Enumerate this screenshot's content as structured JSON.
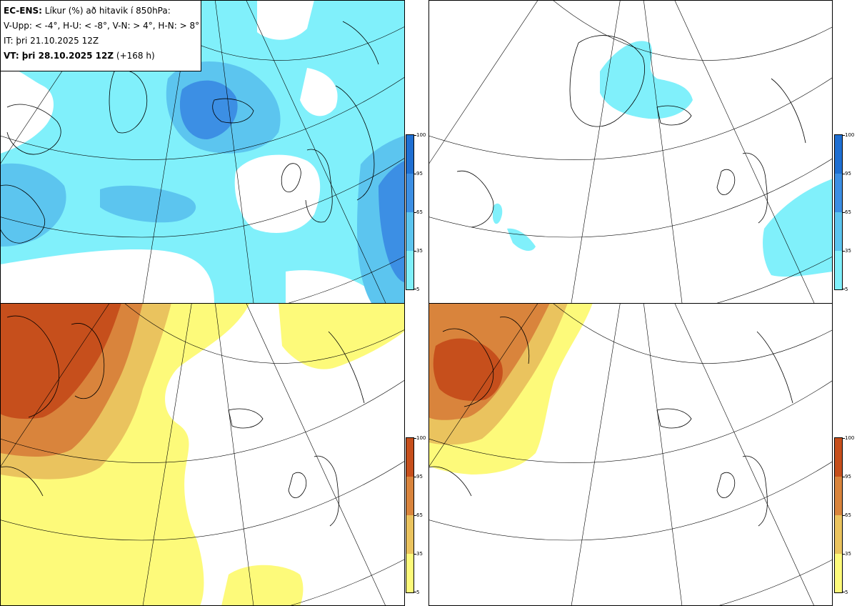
{
  "info": {
    "model": "EC-ENS:",
    "title_rest": "Líkur (%) að hitavik í 850hPa:",
    "thresholds": "V-Upp: < -4°, H-U: < -8°, V-N: > 4°, H-N: > 8°",
    "initial_time": "IT: þri 21.10.2025 12Z",
    "valid_label": "VT: þri 28.10.2025 12Z",
    "valid_lead": "(+168 h)"
  },
  "panels": [
    {
      "id": "V-Upp",
      "description_key": "tl"
    },
    {
      "id": "H-U",
      "description_key": "tr"
    },
    {
      "id": "V-N",
      "description_key": "bl"
    },
    {
      "id": "H-N",
      "description_key": "br"
    }
  ],
  "colorbar_cold": {
    "ticks": [
      "100",
      "95",
      "65",
      "35",
      "5"
    ],
    "colors": [
      "#1f6fd2",
      "#3c8fe4",
      "#5cc5ef",
      "#80f0fb"
    ]
  },
  "colorbar_warm": {
    "ticks": [
      "100",
      "95",
      "65",
      "35",
      "5"
    ],
    "colors": [
      "#c64f1c",
      "#d9843c",
      "#eac35e",
      "#fdfa7a"
    ]
  }
}
